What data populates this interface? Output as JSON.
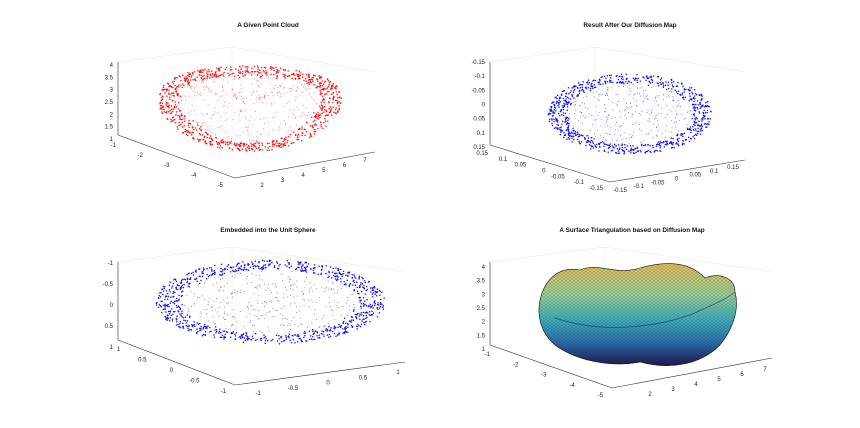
{
  "figure": {
    "panel_titles": [
      "A Given Point Cloud",
      "Result After Our Diffusion Map",
      "Embedded into the Unit Sphere",
      "A Surface Triangulation based on Diffusion Map"
    ]
  },
  "chart_data": [
    {
      "type": "scatter",
      "subtype": "3d-point-cloud",
      "title": "A Given Point Cloud",
      "xlabel": "",
      "ylabel": "",
      "zlabel": "",
      "color": "#ff0000",
      "grid": true,
      "description_of_data": "dense 3D point cloud of a dented cushion / bean-bag shaped surface",
      "xlim": [
        1,
        7
      ],
      "ylim": [
        -5.5,
        -0.5
      ],
      "zlim": [
        0.5,
        4.2
      ],
      "x_ticks": [
        "2",
        "3",
        "4",
        "5",
        "6",
        "7"
      ],
      "y_ticks": [
        "-1",
        "-2",
        "-3",
        "-4",
        "-5"
      ],
      "z_ticks": [
        "1",
        "1.5",
        "2",
        "2.5",
        "3",
        "3.5",
        "4"
      ]
    },
    {
      "type": "scatter",
      "subtype": "3d-point-cloud",
      "title": "Result After Our Diffusion Map",
      "xlabel": "",
      "ylabel": "",
      "zlabel": "",
      "color": "#0000ff",
      "grid": true,
      "description_of_data": "points mapped to a flattened closed ellipsoid-like surface",
      "xlim": [
        -0.15,
        0.15
      ],
      "ylim": [
        -0.15,
        0.15
      ],
      "zlim": [
        -0.15,
        0.15
      ],
      "x_ticks": [
        "-0.15",
        "-0.1",
        "-0.05",
        "0",
        "0.05",
        "0.1",
        "0.15"
      ],
      "y_ticks": [
        "0.15",
        "0.1",
        "0.05",
        "0",
        "-0.05",
        "-0.1",
        "-0.15"
      ],
      "z_ticks": [
        "0.15",
        "0.1",
        "0.05",
        "0",
        "-0.05",
        "-0.1",
        "-0.15"
      ]
    },
    {
      "type": "scatter",
      "subtype": "3d-point-cloud",
      "title": "Embedded into the Unit Sphere",
      "xlabel": "",
      "ylabel": "",
      "zlabel": "",
      "color": "#0000ff",
      "grid": true,
      "description_of_data": "points normalized onto an oblate sphere-like surface",
      "xlim": [
        -1,
        1
      ],
      "ylim": [
        -1,
        1
      ],
      "zlim": [
        -1,
        1
      ],
      "x_ticks": [
        "-1",
        "-0.5",
        "0",
        "0.5",
        "1"
      ],
      "y_ticks": [
        "1",
        "0.5",
        "0",
        "-0.5",
        "-1"
      ],
      "z_ticks": [
        "1",
        "0.5",
        "0",
        "-0.5",
        "-1"
      ]
    },
    {
      "type": "surface",
      "subtype": "3d-triangulated-surface",
      "title": "A Surface Triangulation based on Diffusion Map",
      "xlabel": "",
      "ylabel": "",
      "zlabel": "",
      "colormap": [
        "#2a1a5e",
        "#2c7fb8",
        "#41b6c4",
        "#a1dab4",
        "#d9d36a",
        "#e8c457"
      ],
      "edge_color": "#111111",
      "grid": true,
      "xlim": [
        1,
        7
      ],
      "ylim": [
        -5.5,
        -0.5
      ],
      "zlim": [
        0.5,
        4.2
      ],
      "x_ticks": [
        "2",
        "3",
        "4",
        "5",
        "6",
        "7"
      ],
      "y_ticks": [
        "-1",
        "-2",
        "-3",
        "-4",
        "-5"
      ],
      "z_ticks": [
        "1",
        "1.5",
        "2",
        "2.5",
        "3",
        "3.5",
        "4"
      ]
    }
  ]
}
